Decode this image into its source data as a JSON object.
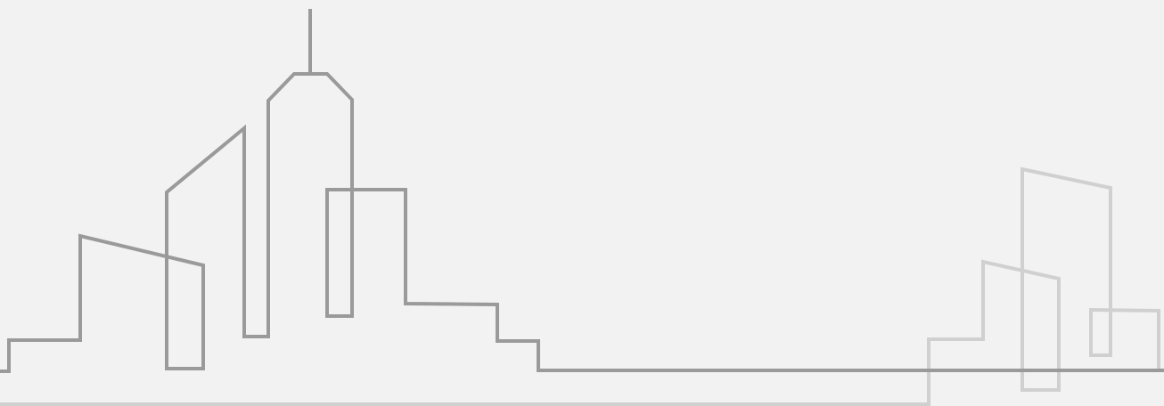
{
  "illustration": {
    "type": "city-skyline-line-art",
    "background_color": "#f2f2f2",
    "dark_stroke_color": "#9a9a9a",
    "light_stroke_color": "#d0d0d0"
  }
}
